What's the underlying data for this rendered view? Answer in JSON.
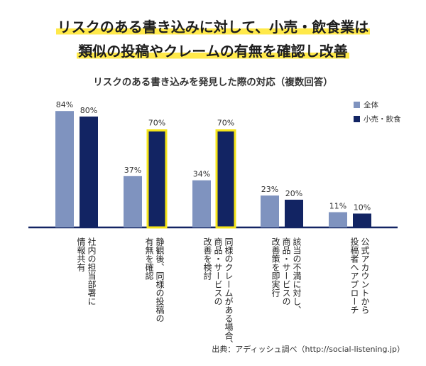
{
  "headline": {
    "line1": "リスクのある書き込みに対して、小売・飲食業は",
    "line2": "類似の投稿やクレームの有無を確認し改善"
  },
  "source": "出典：アディッシュ調べ（http://social-listening.jp）",
  "colors": {
    "all": "#7f93bf",
    "retail": "#122463",
    "highlight": "#f5e51a",
    "axis": "#122463"
  },
  "chart_data": {
    "type": "bar",
    "title": "リスクのある書き込みを発見した際の対応（複数回答）",
    "categories": [
      "社内の担当部署に情報共有",
      "静観後、同様の投稿の有無を確認",
      "同様のクレームがある場合、商品・サービスの改善を検討",
      "該当の不満に対し、商品・サービスの改善策を即実行",
      "公式アカウントから投稿者へアプローチ"
    ],
    "category_lines": [
      [
        "社内の担当部署に",
        "情報共有"
      ],
      [
        "静観後、同様の投稿の",
        "有無を確認"
      ],
      [
        "同様のクレームがある場合、",
        "商品・サービスの",
        "改善を検討"
      ],
      [
        "該当の不満に対し、",
        "商品・サービスの",
        "改善策を即実行"
      ],
      [
        "公式アカウントから",
        "投稿者へアプローチ"
      ]
    ],
    "series": [
      {
        "name": "全体",
        "values": [
          84,
          37,
          34,
          23,
          11
        ],
        "labels": [
          "84%",
          "37%",
          "34%",
          "23%",
          "11%"
        ],
        "highlight": [
          false,
          false,
          false,
          false,
          false
        ]
      },
      {
        "name": "小売・飲食",
        "values": [
          80,
          70,
          70,
          20,
          10
        ],
        "labels": [
          "80%",
          "70%",
          "70%",
          "20%",
          "10%"
        ],
        "highlight": [
          false,
          true,
          true,
          false,
          false
        ]
      }
    ],
    "ylim": [
      0,
      100
    ],
    "legend_position": "top-right",
    "grid": false
  }
}
